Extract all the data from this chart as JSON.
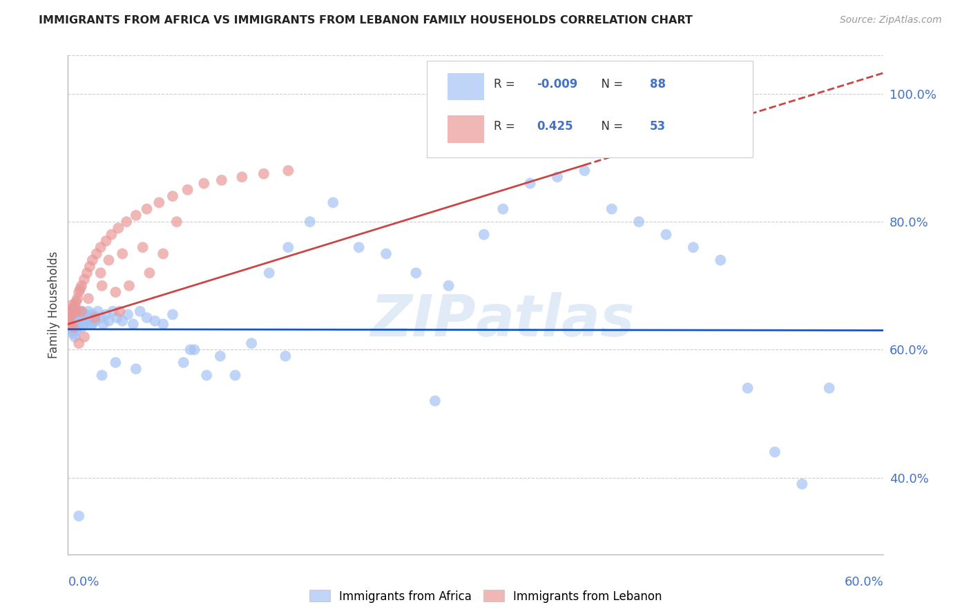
{
  "title": "IMMIGRANTS FROM AFRICA VS IMMIGRANTS FROM LEBANON FAMILY HOUSEHOLDS CORRELATION CHART",
  "source": "Source: ZipAtlas.com",
  "ylabel": "Family Households",
  "legend_label_africa": "Immigrants from Africa",
  "legend_label_lebanon": "Immigrants from Lebanon",
  "R_africa": -0.009,
  "N_africa": 88,
  "R_lebanon": 0.425,
  "N_lebanon": 53,
  "xlim": [
    0.0,
    0.6
  ],
  "ylim": [
    0.28,
    1.06
  ],
  "yticks": [
    0.4,
    0.6,
    0.8,
    1.0
  ],
  "color_africa": "#a4c2f4",
  "color_lebanon": "#ea9999",
  "trendline_africa_color": "#1155cc",
  "trendline_lebanon_color": "#cc4444",
  "background_color": "#ffffff",
  "grid_color": "#cccccc",
  "title_color": "#222222",
  "watermark_color": "#c5d9f1",
  "tick_label_color": "#4472c4",
  "africa_x": [
    0.001,
    0.001,
    0.002,
    0.002,
    0.002,
    0.003,
    0.003,
    0.003,
    0.004,
    0.004,
    0.004,
    0.005,
    0.005,
    0.005,
    0.006,
    0.006,
    0.006,
    0.007,
    0.007,
    0.007,
    0.008,
    0.008,
    0.009,
    0.009,
    0.01,
    0.01,
    0.011,
    0.012,
    0.013,
    0.014,
    0.015,
    0.016,
    0.017,
    0.018,
    0.02,
    0.022,
    0.024,
    0.026,
    0.028,
    0.03,
    0.033,
    0.036,
    0.04,
    0.044,
    0.048,
    0.053,
    0.058,
    0.064,
    0.07,
    0.077,
    0.085,
    0.093,
    0.102,
    0.112,
    0.123,
    0.135,
    0.148,
    0.162,
    0.178,
    0.195,
    0.214,
    0.234,
    0.256,
    0.28,
    0.306,
    0.32,
    0.34,
    0.36,
    0.38,
    0.4,
    0.42,
    0.44,
    0.46,
    0.48,
    0.5,
    0.52,
    0.54,
    0.56,
    0.27,
    0.16,
    0.09,
    0.05,
    0.035,
    0.025,
    0.018,
    0.012,
    0.008,
    0.005
  ],
  "africa_y": [
    0.64,
    0.65,
    0.635,
    0.655,
    0.645,
    0.63,
    0.66,
    0.64,
    0.625,
    0.65,
    0.665,
    0.635,
    0.655,
    0.64,
    0.63,
    0.65,
    0.66,
    0.64,
    0.655,
    0.635,
    0.65,
    0.66,
    0.64,
    0.655,
    0.635,
    0.66,
    0.65,
    0.64,
    0.655,
    0.645,
    0.66,
    0.65,
    0.64,
    0.655,
    0.645,
    0.66,
    0.65,
    0.64,
    0.655,
    0.645,
    0.66,
    0.65,
    0.645,
    0.655,
    0.64,
    0.66,
    0.65,
    0.645,
    0.64,
    0.655,
    0.58,
    0.6,
    0.56,
    0.59,
    0.56,
    0.61,
    0.72,
    0.76,
    0.8,
    0.83,
    0.76,
    0.75,
    0.72,
    0.7,
    0.78,
    0.82,
    0.86,
    0.87,
    0.88,
    0.82,
    0.8,
    0.78,
    0.76,
    0.74,
    0.54,
    0.44,
    0.39,
    0.54,
    0.52,
    0.59,
    0.6,
    0.57,
    0.58,
    0.56,
    0.64,
    0.65,
    0.34,
    0.62
  ],
  "lebanon_x": [
    0.001,
    0.001,
    0.002,
    0.002,
    0.003,
    0.003,
    0.004,
    0.004,
    0.005,
    0.005,
    0.006,
    0.006,
    0.007,
    0.008,
    0.009,
    0.01,
    0.012,
    0.014,
    0.016,
    0.018,
    0.021,
    0.024,
    0.028,
    0.032,
    0.037,
    0.043,
    0.05,
    0.058,
    0.067,
    0.077,
    0.088,
    0.1,
    0.113,
    0.128,
    0.144,
    0.162,
    0.024,
    0.03,
    0.04,
    0.055,
    0.035,
    0.045,
    0.06,
    0.08,
    0.025,
    0.015,
    0.01,
    0.008,
    0.012,
    0.02,
    0.038,
    0.07,
    0.37
  ],
  "lebanon_y": [
    0.64,
    0.65,
    0.66,
    0.64,
    0.67,
    0.655,
    0.665,
    0.635,
    0.66,
    0.67,
    0.675,
    0.66,
    0.68,
    0.69,
    0.695,
    0.7,
    0.71,
    0.72,
    0.73,
    0.74,
    0.75,
    0.76,
    0.77,
    0.78,
    0.79,
    0.8,
    0.81,
    0.82,
    0.83,
    0.84,
    0.85,
    0.86,
    0.865,
    0.87,
    0.875,
    0.88,
    0.72,
    0.74,
    0.75,
    0.76,
    0.69,
    0.7,
    0.72,
    0.8,
    0.7,
    0.68,
    0.66,
    0.61,
    0.62,
    0.65,
    0.66,
    0.75,
    1.0
  ]
}
